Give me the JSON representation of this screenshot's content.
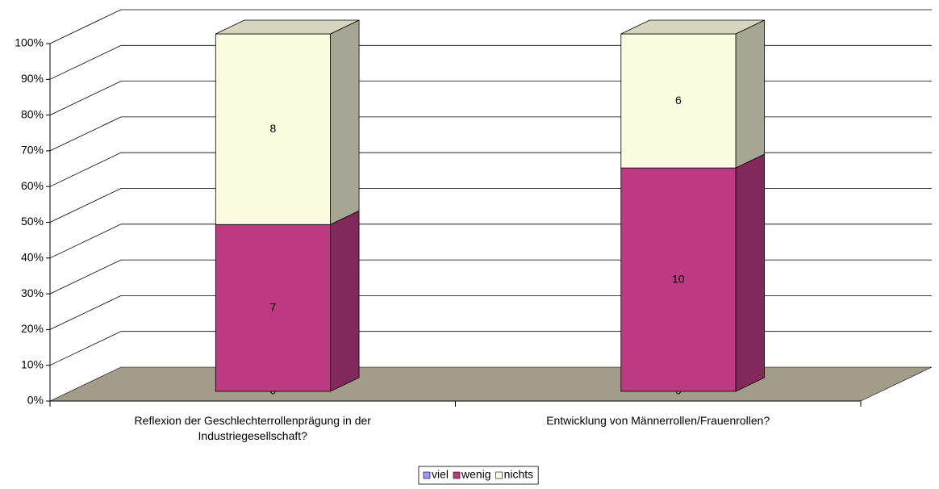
{
  "chart_data": {
    "type": "bar",
    "stacked": "percent",
    "categories": [
      "Reflexion der Geschlechterrollenprägung in der Industriegesellschaft?",
      "Entwicklung von Männerrollen/Frauenrollen?"
    ],
    "series": [
      {
        "name": "viel",
        "color": "#9999ff",
        "values": [
          0,
          0
        ]
      },
      {
        "name": "wenig",
        "color": "#be3a83",
        "values": [
          7,
          10
        ]
      },
      {
        "name": "nichts",
        "color": "#fcfce0",
        "values": [
          8,
          6
        ]
      }
    ],
    "ylim": [
      0,
      100
    ],
    "yticks": [
      {
        "value": 0,
        "label": "0%"
      },
      {
        "value": 10,
        "label": "10%"
      },
      {
        "value": 20,
        "label": "20%"
      },
      {
        "value": 30,
        "label": "30%"
      },
      {
        "value": 40,
        "label": "40%"
      },
      {
        "value": 50,
        "label": "50%"
      },
      {
        "value": 60,
        "label": "60%"
      },
      {
        "value": 70,
        "label": "70%"
      },
      {
        "value": 80,
        "label": "80%"
      },
      {
        "value": 90,
        "label": "90%"
      },
      {
        "value": 100,
        "label": "100%"
      }
    ],
    "grid": true,
    "legend": "bottom"
  }
}
